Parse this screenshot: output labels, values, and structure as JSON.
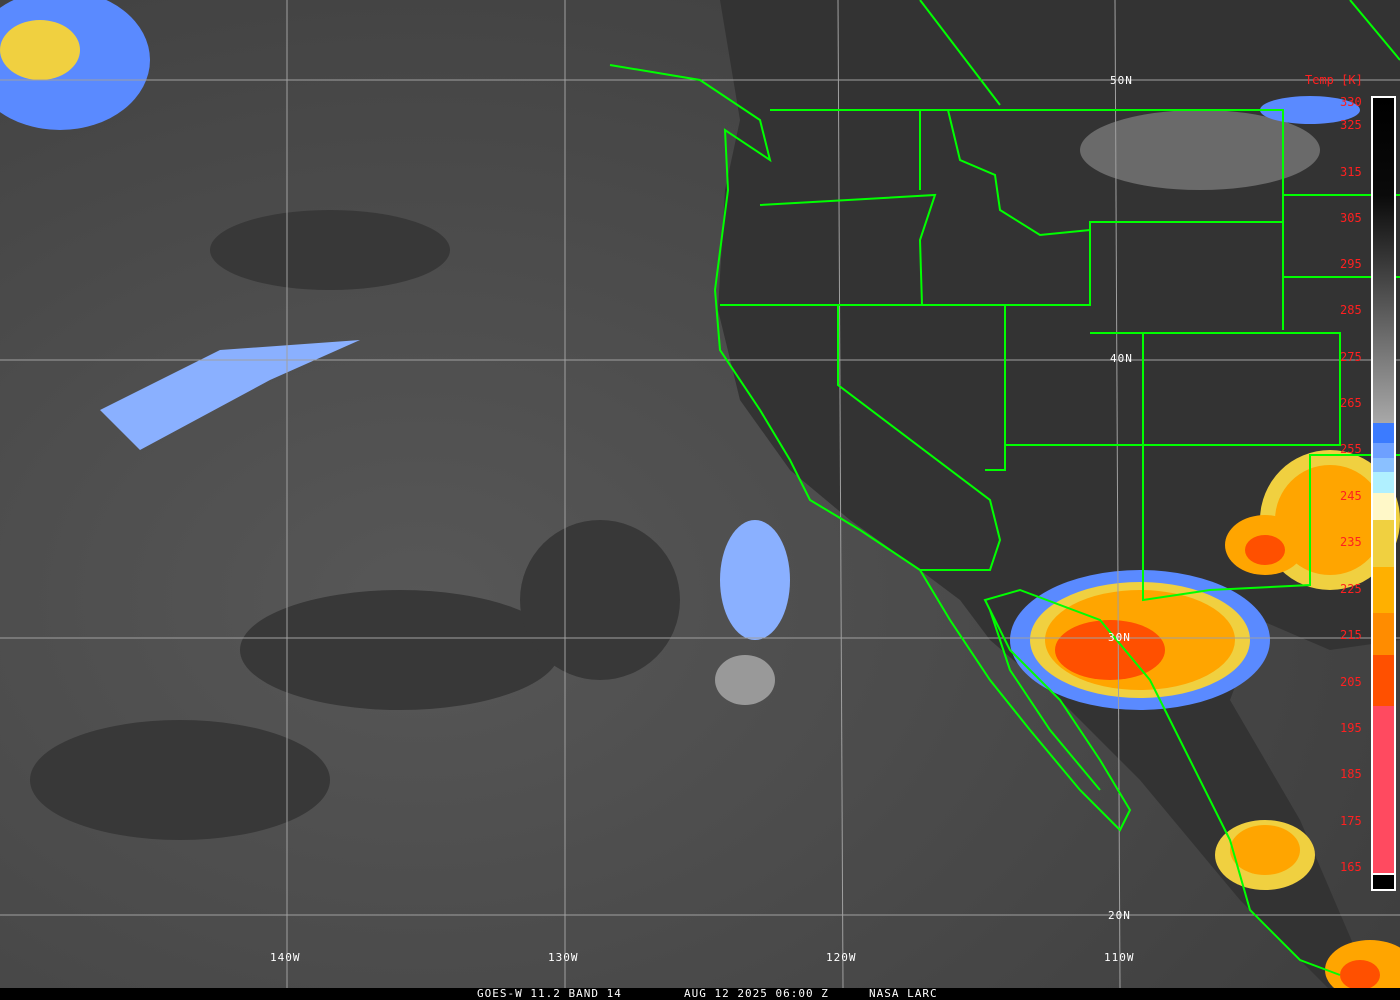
{
  "footer": {
    "satellite": "GOES-W 11.2 BAND 14",
    "datetime": "AUG 12 2025 06:00 Z",
    "credit": "NASA LARC"
  },
  "grid": {
    "latitudes": [
      "50N",
      "40N",
      "30N",
      "20N"
    ],
    "longitudes": [
      "140W",
      "130W",
      "120W",
      "110W"
    ]
  },
  "colorbar": {
    "title": "Temp [K]",
    "ticks": [
      "330",
      "325",
      "315",
      "305",
      "295",
      "285",
      "275",
      "265",
      "255",
      "245",
      "235",
      "225",
      "215",
      "205",
      "195",
      "185",
      "175",
      "165"
    ],
    "colors": {
      "warm": "#000000",
      "cold_gray": "#a0a0a0",
      "blue": "#3b7bff",
      "light_blue": "#b0f0ff",
      "cream": "#fff8c8",
      "yellow": "#f0d040",
      "orange": "#ffa500",
      "orange_red": "#ff5000",
      "pink": "#ff4a60"
    }
  },
  "colors": {
    "boundaries": "#00ff00",
    "grid": "#a0a0a0",
    "labels": "#ffffff",
    "colorbar_labels": "#ff2020"
  }
}
